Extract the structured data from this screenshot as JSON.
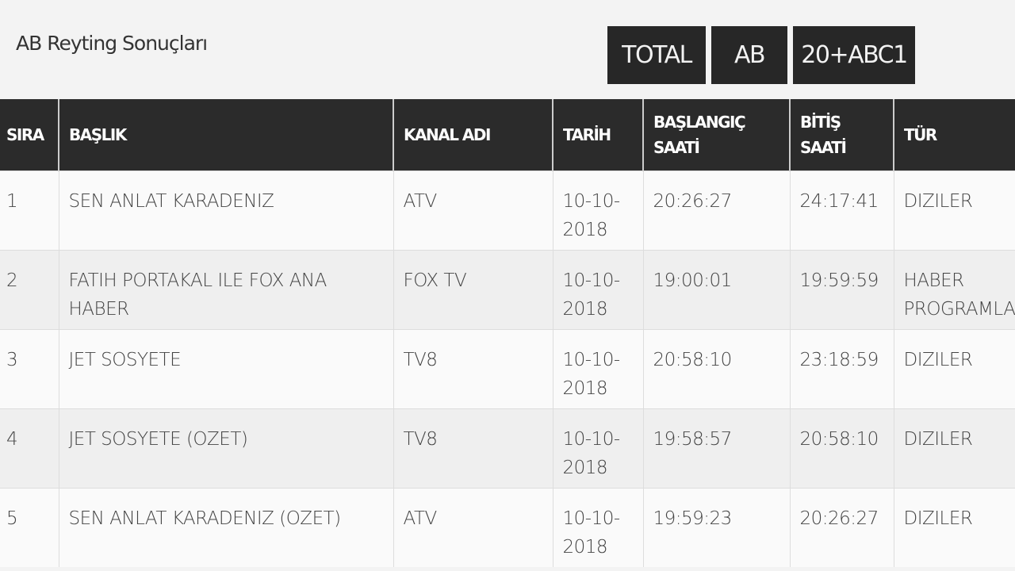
{
  "page": {
    "title": "AB Reyting Sonuçları"
  },
  "tabs": [
    {
      "label": "TOTAL"
    },
    {
      "label": "AB"
    },
    {
      "label": "20+ABC1"
    }
  ],
  "table": {
    "headers": [
      "SIRA",
      "BAŞLIK",
      "KANAL ADI",
      "TARİH",
      "BAŞLANGIÇ SAATİ",
      "BİTİŞ SAATİ",
      "TÜR"
    ],
    "rows": [
      [
        "1",
        "SEN ANLAT KARADENIZ",
        "ATV",
        "10-10-2018",
        "20:26:27",
        "24:17:41",
        "DIZILER"
      ],
      [
        "2",
        "FATIH PORTAKAL ILE FOX ANA HABER",
        "FOX TV",
        "10-10-2018",
        "19:00:01",
        "19:59:59",
        "HABER PROGRAMLARI"
      ],
      [
        "3",
        "JET SOSYETE",
        "TV8",
        "10-10-2018",
        "20:58:10",
        "23:18:59",
        "DIZILER"
      ],
      [
        "4",
        "JET SOSYETE (OZET)",
        "TV8",
        "10-10-2018",
        "19:58:57",
        "20:58:10",
        "DIZILER"
      ],
      [
        "5",
        "SEN ANLAT KARADENIZ (OZET)",
        "ATV",
        "10-10-2018",
        "19:59:23",
        "20:26:27",
        "DIZILER"
      ]
    ]
  }
}
